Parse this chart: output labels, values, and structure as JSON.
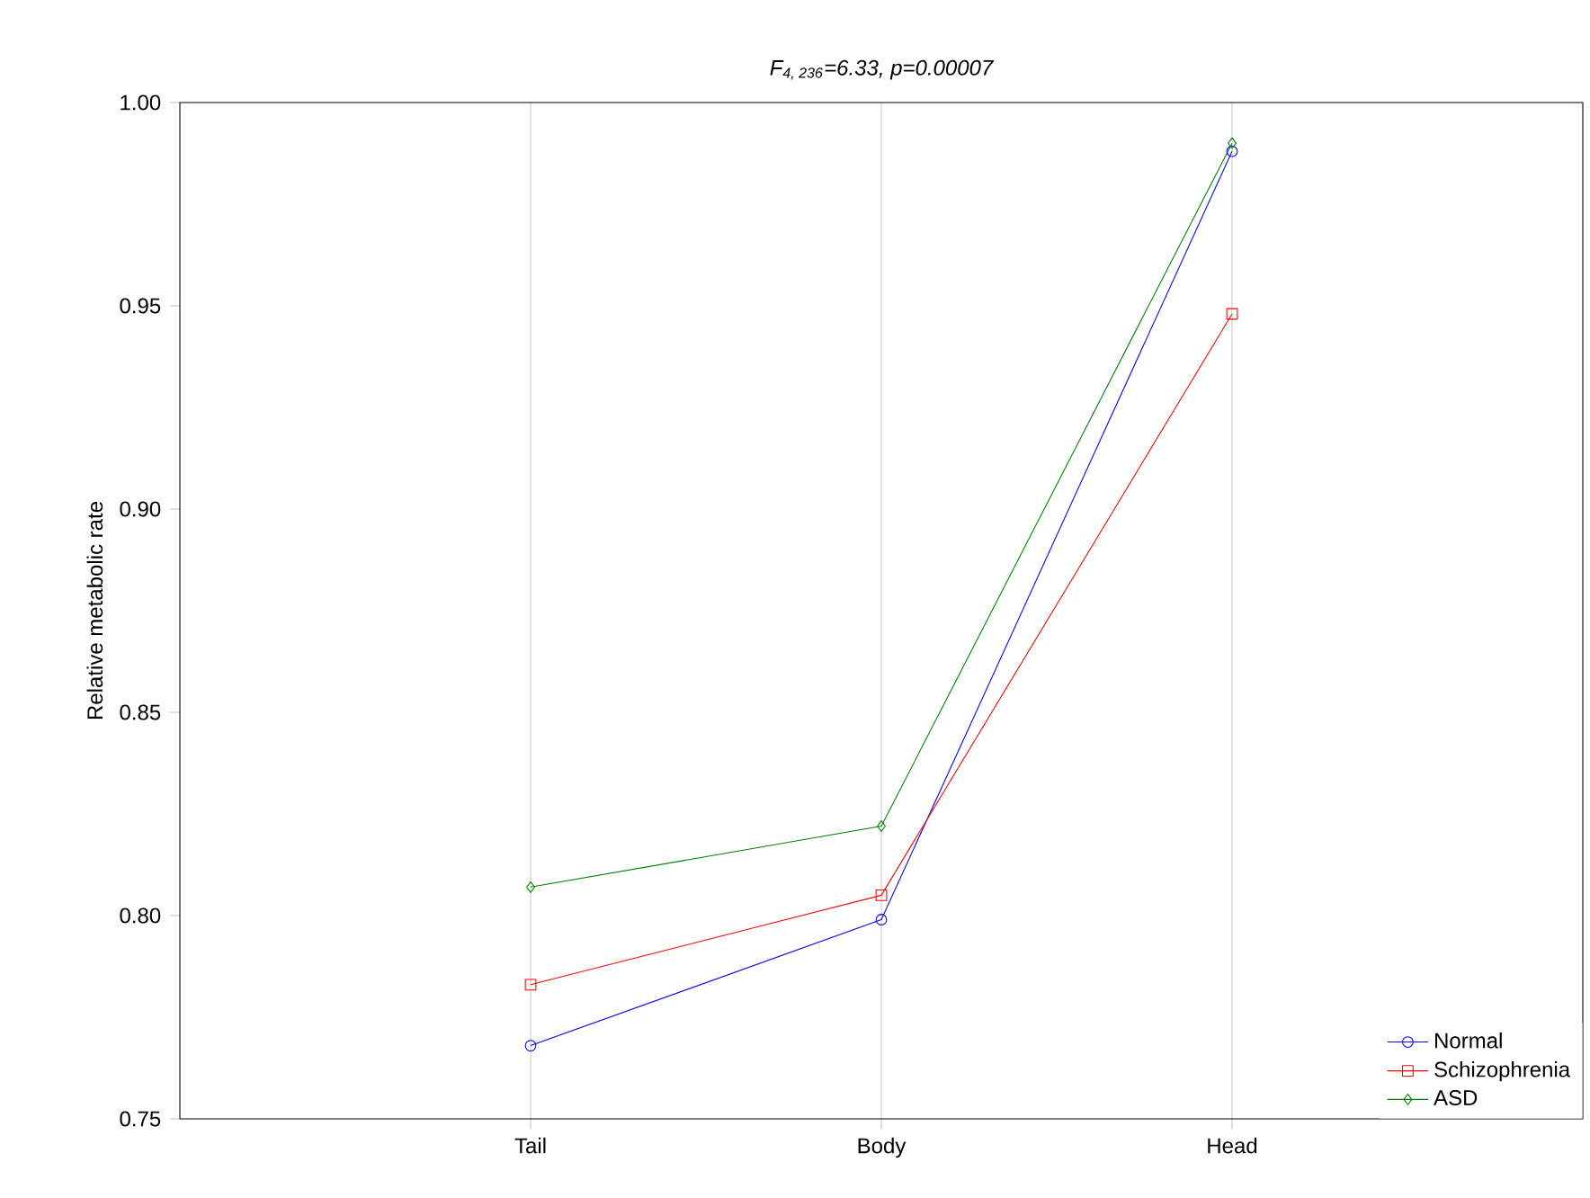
{
  "chart_data": {
    "type": "line",
    "title": "F$_{4, 236}$=6.33, p=0.00007",
    "ylabel": "Relative metabolic rate",
    "categories": [
      "Tail",
      "Body",
      "Head"
    ],
    "series": [
      {
        "name": "Normal",
        "color": "#0000ff",
        "marker": "circle",
        "values": [
          0.768,
          0.799,
          0.988
        ]
      },
      {
        "name": "Schizophrenia",
        "color": "#ff0000",
        "marker": "square",
        "values": [
          0.783,
          0.805,
          0.948
        ]
      },
      {
        "name": "ASD",
        "color": "#008000",
        "marker": "diamond",
        "values": [
          0.807,
          0.822,
          0.99
        ]
      }
    ],
    "ylim": [
      0.75,
      1.0
    ],
    "yticks": [
      {
        "value": 0.75,
        "label": "0.75"
      },
      {
        "value": 0.8,
        "label": "0.80"
      },
      {
        "value": 0.85,
        "label": "0.85"
      },
      {
        "value": 0.9,
        "label": "0.90"
      },
      {
        "value": 0.95,
        "label": "0.95"
      },
      {
        "value": 1.0,
        "label": "1.00"
      }
    ],
    "grid": "x",
    "legend": "bottom right"
  }
}
